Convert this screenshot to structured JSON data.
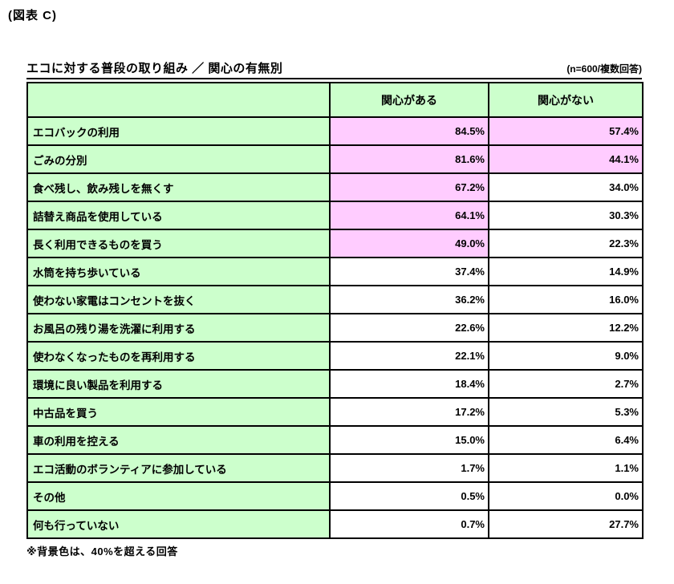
{
  "figure_label": "(図表 C)",
  "title": "エコに対する普段の取り組み ／ 関心の有無別",
  "sample_note": "(n=600/複数回答)",
  "footnote": "※背景色は、40%を超える回答",
  "colors": {
    "cell_green": "#ccffcc",
    "highlight_pink": "#ffccff",
    "border": "#000000",
    "text": "#000000"
  },
  "highlight": {
    "threshold_percent": 40,
    "rule_text": "40%を超える回答"
  },
  "table": {
    "columns": [
      "",
      "関心がある",
      "関心がない"
    ],
    "rows": [
      {
        "label": "エコバックの利用",
        "values": [
          "84.5%",
          "57.4%"
        ]
      },
      {
        "label": "ごみの分別",
        "values": [
          "81.6%",
          "44.1%"
        ]
      },
      {
        "label": "食べ残し、飲み残しを無くす",
        "values": [
          "67.2%",
          "34.0%"
        ]
      },
      {
        "label": "詰替え商品を使用している",
        "values": [
          "64.1%",
          "30.3%"
        ]
      },
      {
        "label": "長く利用できるものを買う",
        "values": [
          "49.0%",
          "22.3%"
        ]
      },
      {
        "label": "水筒を持ち歩いている",
        "values": [
          "37.4%",
          "14.9%"
        ]
      },
      {
        "label": "使わない家電はコンセントを抜く",
        "values": [
          "36.2%",
          "16.0%"
        ]
      },
      {
        "label": "お風呂の残り湯を洗濯に利用する",
        "values": [
          "22.6%",
          "12.2%"
        ]
      },
      {
        "label": "使わなくなったものを再利用する",
        "values": [
          "22.1%",
          "9.0%"
        ]
      },
      {
        "label": "環境に良い製品を利用する",
        "values": [
          "18.4%",
          "2.7%"
        ]
      },
      {
        "label": "中古品を買う",
        "values": [
          "17.2%",
          "5.3%"
        ]
      },
      {
        "label": "車の利用を控える",
        "values": [
          "15.0%",
          "6.4%"
        ]
      },
      {
        "label": "エコ活動のボランティアに参加している",
        "values": [
          "1.7%",
          "1.1%"
        ]
      },
      {
        "label": "その他",
        "values": [
          "0.5%",
          "0.0%"
        ]
      },
      {
        "label": "何も行っていない",
        "values": [
          "0.7%",
          "27.7%"
        ]
      }
    ]
  },
  "chart_data": {
    "type": "table",
    "title": "エコに対する普段の取り組み ／ 関心の有無別",
    "n": 600,
    "response_type": "複数回答",
    "categories": [
      "エコバックの利用",
      "ごみの分別",
      "食べ残し、飲み残しを無くす",
      "詰替え商品を使用している",
      "長く利用できるものを買う",
      "水筒を持ち歩いている",
      "使わない家電はコンセントを抜く",
      "お風呂の残り湯を洗濯に利用する",
      "使わなくなったものを再利用する",
      "環境に良い製品を利用する",
      "中古品を買う",
      "車の利用を控える",
      "エコ活動のボランティアに参加している",
      "その他",
      "何も行っていない"
    ],
    "series": [
      {
        "name": "関心がある",
        "values": [
          84.5,
          81.6,
          67.2,
          64.1,
          49.0,
          37.4,
          36.2,
          22.6,
          22.1,
          18.4,
          17.2,
          15.0,
          1.7,
          0.5,
          0.7
        ]
      },
      {
        "name": "関心がない",
        "values": [
          57.4,
          44.1,
          34.0,
          30.3,
          22.3,
          14.9,
          16.0,
          12.2,
          9.0,
          2.7,
          5.3,
          6.4,
          1.1,
          0.0,
          27.7
        ]
      }
    ],
    "unit": "%",
    "highlight_rule": "cell background pink when value > 40%"
  }
}
